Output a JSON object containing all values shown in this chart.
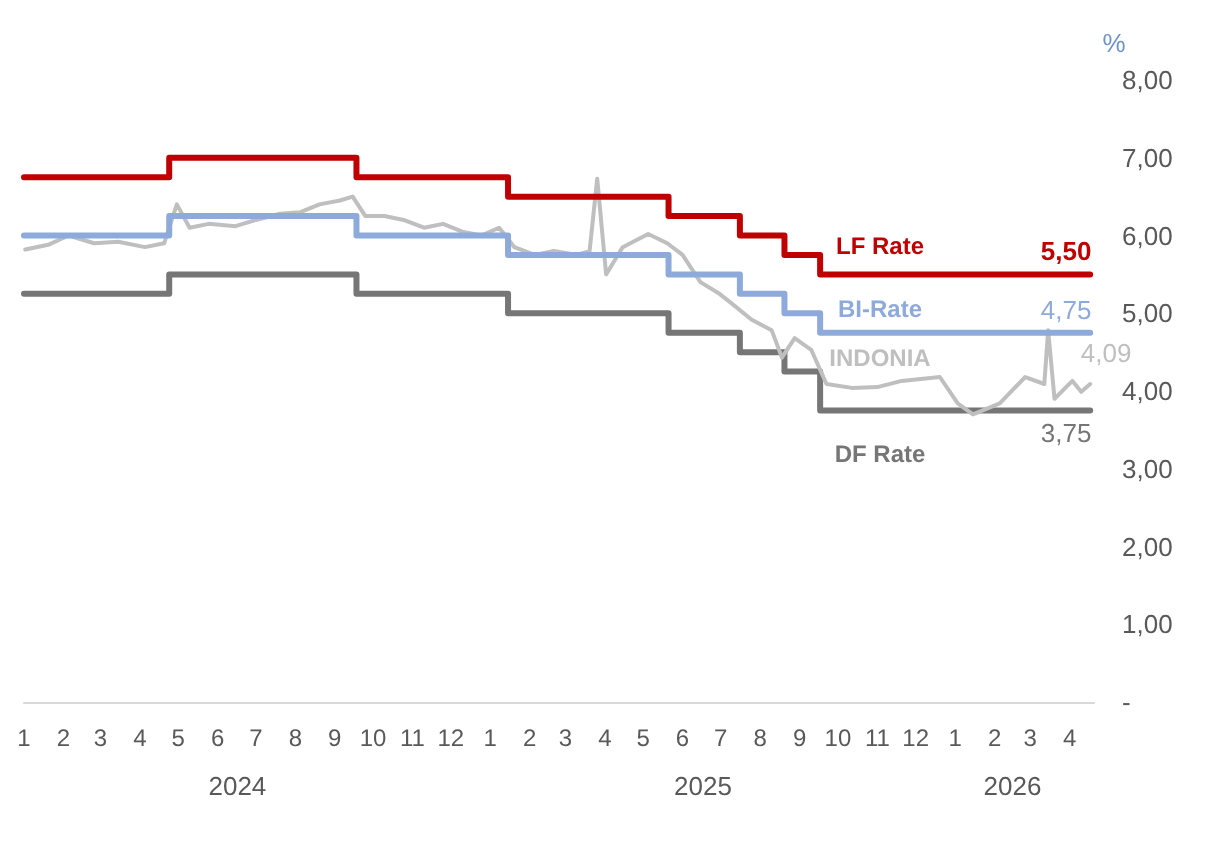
{
  "chart_data": {
    "type": "line",
    "ylabel": "%",
    "legend": false,
    "grid": false,
    "marker": "none",
    "line_style": "solid",
    "xlim": [
      "2024-01-01",
      "2026-04-20"
    ],
    "xticks": [
      {
        "value": "2024-01-01",
        "label": "1"
      },
      {
        "value": "2024-02-01",
        "label": "2"
      },
      {
        "value": "2024-03-01",
        "label": "3"
      },
      {
        "value": "2024-04-01",
        "label": "4"
      },
      {
        "value": "2024-05-01",
        "label": "5"
      },
      {
        "value": "2024-06-01",
        "label": "6"
      },
      {
        "value": "2024-07-01",
        "label": "7"
      },
      {
        "value": "2024-08-01",
        "label": "8"
      },
      {
        "value": "2024-09-01",
        "label": "9"
      },
      {
        "value": "2024-10-01",
        "label": "10"
      },
      {
        "value": "2024-11-01",
        "label": "11"
      },
      {
        "value": "2024-12-01",
        "label": "12"
      },
      {
        "value": "2025-01-01",
        "label": "1"
      },
      {
        "value": "2025-02-01",
        "label": "2"
      },
      {
        "value": "2025-03-01",
        "label": "3"
      },
      {
        "value": "2025-04-01",
        "label": "4"
      },
      {
        "value": "2025-05-01",
        "label": "5"
      },
      {
        "value": "2025-06-01",
        "label": "6"
      },
      {
        "value": "2025-07-01",
        "label": "7"
      },
      {
        "value": "2025-08-01",
        "label": "8"
      },
      {
        "value": "2025-09-01",
        "label": "9"
      },
      {
        "value": "2025-10-01",
        "label": "10"
      },
      {
        "value": "2025-11-01",
        "label": "11"
      },
      {
        "value": "2025-12-01",
        "label": "12"
      },
      {
        "value": "2026-01-01",
        "label": "1"
      },
      {
        "value": "2026-02-01",
        "label": "2"
      },
      {
        "value": "2026-03-01",
        "label": "3"
      },
      {
        "value": "2026-04-01",
        "label": "4"
      }
    ],
    "ylim": [
      0,
      8
    ],
    "yticks": [
      {
        "value": 0,
        "label": "-"
      },
      {
        "value": 1,
        "label": "1,00"
      },
      {
        "value": 2,
        "label": "2,00"
      },
      {
        "value": 3,
        "label": "3,00"
      },
      {
        "value": 4,
        "label": "4,00"
      },
      {
        "value": 5,
        "label": "5,00"
      },
      {
        "value": 6,
        "label": "6,00"
      },
      {
        "value": 7,
        "label": "7,00"
      },
      {
        "value": 8,
        "label": "8,00"
      }
    ],
    "annotations": [
      "2024",
      "2025",
      "2026"
    ],
    "series": [
      {
        "name": "LF Rate",
        "type": "step",
        "color": "#c00000",
        "x": [
          "2024-01-01",
          "2024-04-24",
          "2024-09-18",
          "2025-01-15",
          "2025-05-21",
          "2025-07-16",
          "2025-08-20",
          "2025-09-17",
          "2026-04-17"
        ],
        "values": [
          6.75,
          7.0,
          6.75,
          6.5,
          6.25,
          6.0,
          5.75,
          5.5,
          5.5
        ],
        "value_labels": [
          null,
          null,
          null,
          null,
          null,
          null,
          null,
          null,
          "5,50"
        ]
      },
      {
        "name": "BI-Rate",
        "type": "step",
        "color": "#8eaadb",
        "x": [
          "2024-01-01",
          "2024-04-24",
          "2024-09-18",
          "2025-01-15",
          "2025-05-21",
          "2025-07-16",
          "2025-08-20",
          "2025-09-17",
          "2026-04-17"
        ],
        "values": [
          6.0,
          6.25,
          6.0,
          5.75,
          5.5,
          5.25,
          5.0,
          4.75,
          4.75
        ],
        "value_labels": [
          null,
          null,
          null,
          null,
          null,
          null,
          null,
          null,
          "4,75"
        ]
      },
      {
        "name": "INDONIA",
        "type": "line",
        "color": "#bfbfbf",
        "x": [
          "2024-01-02",
          "2024-01-20",
          "2024-02-05",
          "2024-02-25",
          "2024-03-15",
          "2024-04-05",
          "2024-04-20",
          "2024-04-30",
          "2024-05-10",
          "2024-05-25",
          "2024-06-15",
          "2024-07-01",
          "2024-07-20",
          "2024-08-05",
          "2024-08-20",
          "2024-09-05",
          "2024-09-15",
          "2024-09-25",
          "2024-10-10",
          "2024-10-25",
          "2024-11-10",
          "2024-11-25",
          "2024-12-10",
          "2024-12-25",
          "2025-01-08",
          "2025-01-20",
          "2025-02-05",
          "2025-02-20",
          "2025-03-10",
          "2025-03-20",
          "2025-03-26",
          "2025-04-02",
          "2025-04-15",
          "2025-05-05",
          "2025-05-20",
          "2025-06-01",
          "2025-06-15",
          "2025-06-30",
          "2025-07-10",
          "2025-07-25",
          "2025-08-10",
          "2025-08-18",
          "2025-08-28",
          "2025-09-10",
          "2025-09-22",
          "2025-10-12",
          "2025-11-01",
          "2025-11-20",
          "2025-12-20",
          "2026-01-03",
          "2026-01-15",
          "2026-02-05",
          "2026-02-25",
          "2026-03-12",
          "2026-03-15",
          "2026-03-20",
          "2026-04-03",
          "2026-04-10",
          "2026-04-17"
        ],
        "values": [
          5.82,
          5.88,
          6.0,
          5.9,
          5.92,
          5.85,
          5.9,
          6.4,
          6.1,
          6.15,
          6.12,
          6.2,
          6.28,
          6.3,
          6.4,
          6.45,
          6.5,
          6.25,
          6.25,
          6.2,
          6.1,
          6.15,
          6.05,
          6.0,
          6.1,
          5.85,
          5.75,
          5.8,
          5.75,
          5.8,
          6.73,
          5.5,
          5.85,
          6.02,
          5.9,
          5.75,
          5.4,
          5.25,
          5.12,
          4.92,
          4.78,
          4.43,
          4.68,
          4.53,
          4.09,
          4.04,
          4.05,
          4.13,
          4.18,
          3.84,
          3.7,
          3.84,
          4.18,
          4.09,
          4.78,
          3.9,
          4.13,
          3.99,
          4.09
        ],
        "value_labels": [
          null,
          null,
          null,
          null,
          null,
          null,
          null,
          null,
          null,
          null,
          null,
          null,
          null,
          null,
          null,
          null,
          null,
          null,
          null,
          null,
          null,
          null,
          null,
          null,
          null,
          null,
          null,
          null,
          null,
          null,
          null,
          null,
          null,
          null,
          null,
          null,
          null,
          null,
          null,
          null,
          null,
          null,
          null,
          null,
          null,
          null,
          null,
          null,
          null,
          null,
          null,
          null,
          null,
          null,
          null,
          null,
          null,
          null,
          "4,09"
        ]
      },
      {
        "name": "DF Rate",
        "type": "step",
        "color": "#767676",
        "x": [
          "2024-01-01",
          "2024-04-24",
          "2024-09-18",
          "2025-01-15",
          "2025-05-21",
          "2025-07-16",
          "2025-08-20",
          "2025-09-17",
          "2026-04-17"
        ],
        "values": [
          5.25,
          5.5,
          5.25,
          5.0,
          4.75,
          4.5,
          4.25,
          3.75,
          3.75
        ],
        "value_labels": [
          null,
          null,
          null,
          null,
          null,
          null,
          null,
          null,
          "3,75"
        ]
      }
    ]
  }
}
